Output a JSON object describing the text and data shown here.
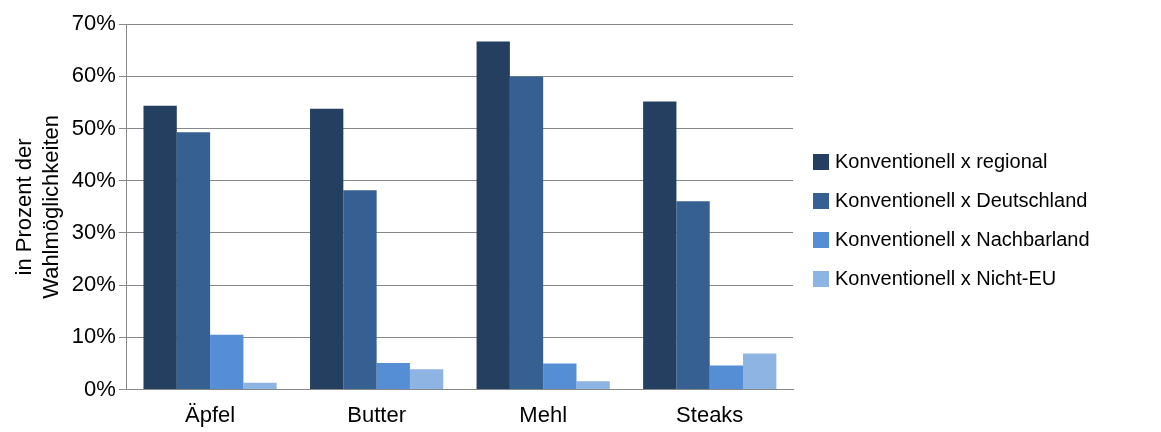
{
  "chart_data": {
    "type": "bar",
    "ylabel": "in Prozent der Wahlmöglichkeiten",
    "categories": [
      "Äpfel",
      "Butter",
      "Mehl",
      "Steaks"
    ],
    "series": [
      {
        "name": "Konventionell x regional",
        "color": "#243f60",
        "values": [
          54.4,
          53.8,
          66.7,
          55.2
        ]
      },
      {
        "name": "Konventionell x Deutschland",
        "color": "#376092",
        "values": [
          49.3,
          38.2,
          60.0,
          36.1
        ]
      },
      {
        "name": "Konventionell x Nachbarland",
        "color": "#558ed5",
        "values": [
          10.5,
          5.1,
          5.0,
          4.6
        ]
      },
      {
        "name": "Konventionell x Nicht-EU",
        "color": "#8eb4e3",
        "values": [
          1.3,
          3.9,
          1.6,
          6.9
        ]
      }
    ],
    "ylim": [
      0,
      70
    ],
    "yticks": [
      {
        "value": 0,
        "label": "0%"
      },
      {
        "value": 10,
        "label": "10%"
      },
      {
        "value": 20,
        "label": "20%"
      },
      {
        "value": 30,
        "label": "30%"
      },
      {
        "value": 40,
        "label": "40%"
      },
      {
        "value": 50,
        "label": "50%"
      },
      {
        "value": 60,
        "label": "60%"
      },
      {
        "value": 70,
        "label": "70%"
      }
    ],
    "grid": "y",
    "legend": "right"
  }
}
